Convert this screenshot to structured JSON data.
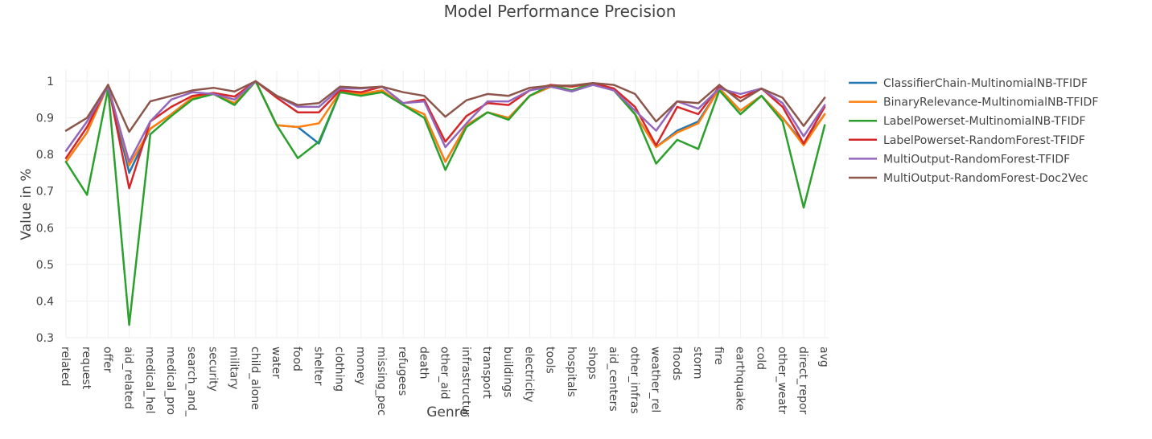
{
  "chart_data": {
    "type": "line",
    "title": "Model Performance Precision",
    "xlabel": "Genre",
    "ylabel": "Value in %",
    "ylim": [
      0.3,
      1.0
    ],
    "y_ticks": [
      0.3,
      0.4,
      0.5,
      0.6,
      0.7,
      0.8,
      0.9,
      1
    ],
    "y_tick_labels": [
      "0.3",
      "0.4",
      "0.5",
      "0.6",
      "0.7",
      "0.8",
      "0.9",
      "1"
    ],
    "grid": true,
    "legend_position": "right",
    "categories": [
      "related",
      "request",
      "offer",
      "aid_related",
      "medical_hel",
      "medical_pro",
      "search_and_",
      "security",
      "military",
      "child_alone",
      "water",
      "food",
      "shelter",
      "clothing",
      "money",
      "missing_pec",
      "refugees",
      "death",
      "other_aid",
      "infrastructur",
      "transport",
      "buildings",
      "electricity",
      "tools",
      "hospitals",
      "shops",
      "aid_centers",
      "other_infras",
      "weather_rel",
      "floods",
      "storm",
      "fire",
      "earthquake",
      "cold",
      "other_weatr",
      "direct_repor",
      "avg"
    ],
    "series": [
      {
        "name": "ClassifierChain-MultinomialNB-TFIDF",
        "color": "#1f77b4",
        "values": [
          0.78,
          0.86,
          0.99,
          0.75,
          0.87,
          0.91,
          0.955,
          0.965,
          0.94,
          1.0,
          0.88,
          0.875,
          0.83,
          0.97,
          0.965,
          0.975,
          0.935,
          0.91,
          0.78,
          0.88,
          0.915,
          0.9,
          0.96,
          0.985,
          0.975,
          0.995,
          0.975,
          0.91,
          0.82,
          0.865,
          0.89,
          0.98,
          0.92,
          0.96,
          0.9,
          0.83,
          0.91
        ]
      },
      {
        "name": "BinaryRelevance-MultinomialNB-TFIDF",
        "color": "#ff7f0e",
        "values": [
          0.78,
          0.86,
          0.99,
          0.77,
          0.87,
          0.91,
          0.955,
          0.965,
          0.94,
          1.0,
          0.88,
          0.875,
          0.885,
          0.97,
          0.965,
          0.975,
          0.935,
          0.91,
          0.78,
          0.88,
          0.915,
          0.9,
          0.96,
          0.985,
          0.975,
          0.995,
          0.975,
          0.91,
          0.82,
          0.86,
          0.885,
          0.98,
          0.92,
          0.96,
          0.9,
          0.825,
          0.91
        ]
      },
      {
        "name": "LabelPowerset-MultinomialNB-TFIDF",
        "color": "#2ca02c",
        "values": [
          0.78,
          0.69,
          0.98,
          0.335,
          0.855,
          0.905,
          0.95,
          0.965,
          0.935,
          1.0,
          0.88,
          0.79,
          0.835,
          0.97,
          0.96,
          0.97,
          0.935,
          0.9,
          0.758,
          0.875,
          0.915,
          0.895,
          0.96,
          0.99,
          0.975,
          0.995,
          0.975,
          0.91,
          0.775,
          0.84,
          0.815,
          0.975,
          0.91,
          0.96,
          0.89,
          0.655,
          0.88
        ]
      },
      {
        "name": "LabelPowerset-RandomForest-TFIDF",
        "color": "#d62728",
        "values": [
          0.79,
          0.875,
          0.99,
          0.708,
          0.89,
          0.93,
          0.96,
          0.968,
          0.958,
          1.0,
          0.955,
          0.915,
          0.915,
          0.975,
          0.97,
          0.985,
          0.94,
          0.95,
          0.835,
          0.905,
          0.94,
          0.935,
          0.975,
          0.99,
          0.985,
          0.995,
          0.98,
          0.93,
          0.825,
          0.93,
          0.91,
          0.985,
          0.955,
          0.98,
          0.93,
          0.83,
          0.93
        ]
      },
      {
        "name": "MultiOutput-RandomForest-TFIDF",
        "color": "#9467bd",
        "values": [
          0.81,
          0.89,
          0.985,
          0.78,
          0.89,
          0.95,
          0.97,
          0.965,
          0.95,
          1.0,
          0.96,
          0.93,
          0.93,
          0.98,
          0.98,
          0.985,
          0.94,
          0.945,
          0.82,
          0.885,
          0.945,
          0.945,
          0.975,
          0.985,
          0.972,
          0.99,
          0.975,
          0.92,
          0.865,
          0.945,
          0.925,
          0.98,
          0.965,
          0.98,
          0.94,
          0.85,
          0.935
        ]
      },
      {
        "name": "MultiOutput-RandomForest-Doc2Vec",
        "color": "#8c564b",
        "values": [
          0.865,
          0.9,
          0.99,
          0.862,
          0.945,
          0.96,
          0.975,
          0.982,
          0.972,
          1.0,
          0.96,
          0.935,
          0.94,
          0.985,
          0.982,
          0.985,
          0.97,
          0.96,
          0.903,
          0.948,
          0.965,
          0.96,
          0.982,
          0.988,
          0.988,
          0.995,
          0.99,
          0.965,
          0.89,
          0.945,
          0.94,
          0.99,
          0.945,
          0.98,
          0.955,
          0.878,
          0.955
        ]
      }
    ]
  }
}
